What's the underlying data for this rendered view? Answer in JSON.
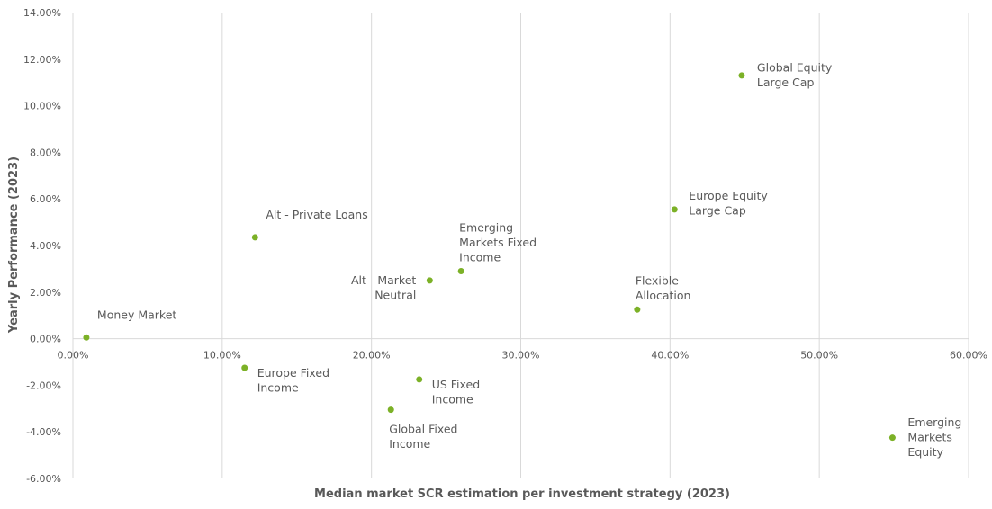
{
  "chart_data": {
    "type": "scatter",
    "xlabel": "Median market SCR estimation per investment strategy (2023)",
    "ylabel": "Yearly Performance (2023)",
    "xlim": [
      0,
      60
    ],
    "ylim": [
      -6,
      14
    ],
    "x_ticks": [
      "0.00%",
      "10.00%",
      "20.00%",
      "30.00%",
      "40.00%",
      "50.00%",
      "60.00%"
    ],
    "y_ticks": [
      "14.00%",
      "12.00%",
      "10.00%",
      "8.00%",
      "6.00%",
      "4.00%",
      "2.00%",
      "0.00%",
      "-2.00%",
      "-4.00%",
      "-6.00%"
    ],
    "x_tick_values": [
      0,
      10,
      20,
      30,
      40,
      50,
      60
    ],
    "y_tick_values": [
      14,
      12,
      10,
      8,
      6,
      4,
      2,
      0,
      -2,
      -4,
      -6
    ],
    "grid": "vertical",
    "color": "#7cb127",
    "points": [
      {
        "label": "Money Market",
        "x": 0.9,
        "y": 0.05,
        "lines": [
          "Money Market"
        ],
        "pos": "above-right"
      },
      {
        "label": "Alt - Private Loans",
        "x": 12.2,
        "y": 4.35,
        "lines": [
          "Alt - Private Loans"
        ],
        "pos": "above-right"
      },
      {
        "label": "Europe Fixed Income",
        "x": 11.5,
        "y": -1.25,
        "lines": [
          "Europe Fixed",
          "Income"
        ],
        "pos": "right-below"
      },
      {
        "label": "Alt - Market Neutral",
        "x": 23.9,
        "y": 2.5,
        "lines": [
          "Alt - Market",
          "Neutral"
        ],
        "pos": "left"
      },
      {
        "label": "Emerging Markets Fixed Income",
        "x": 26.0,
        "y": 2.9,
        "lines": [
          "Emerging",
          "Markets Fixed",
          "Income"
        ],
        "pos": "above"
      },
      {
        "label": "US Fixed Income",
        "x": 23.2,
        "y": -1.75,
        "lines": [
          "US Fixed",
          "Income"
        ],
        "pos": "right-below"
      },
      {
        "label": "Global Fixed Income",
        "x": 21.3,
        "y": -3.05,
        "lines": [
          "Global Fixed",
          "Income"
        ],
        "pos": "below"
      },
      {
        "label": "Flexible Allocation",
        "x": 37.8,
        "y": 1.25,
        "lines": [
          "Flexible",
          "Allocation"
        ],
        "pos": "above"
      },
      {
        "label": "Europe Equity Large Cap",
        "x": 40.3,
        "y": 5.55,
        "lines": [
          "Europe Equity",
          "Large Cap"
        ],
        "pos": "right-above"
      },
      {
        "label": "Global Equity Large Cap",
        "x": 44.8,
        "y": 11.3,
        "lines": [
          "Global Equity",
          "Large Cap"
        ],
        "pos": "right"
      },
      {
        "label": "Emerging Markets Equity",
        "x": 54.9,
        "y": -4.25,
        "lines": [
          "Emerging",
          "Markets",
          "Equity"
        ],
        "pos": "right"
      }
    ]
  }
}
